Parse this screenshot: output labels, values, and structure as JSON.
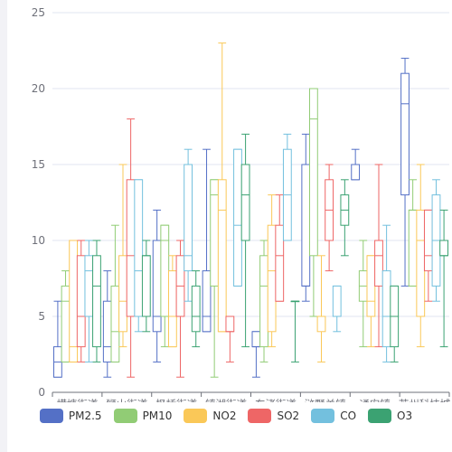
{
  "chart_data": {
    "type": "boxplot",
    "categories": [
      "横塘街道",
      "狮山街道",
      "枫桥街道",
      "镇湖街道",
      "东渚街道",
      "浒墅关镇",
      "通安镇",
      "苏州科技城"
    ],
    "ylim": [
      0,
      25
    ],
    "yticks": [
      0,
      5,
      10,
      15,
      20,
      25
    ],
    "grid": true,
    "legend_position": "bottom",
    "series": [
      {
        "name": "PM2.5",
        "color": "#5470c6",
        "boxes": [
          {
            "min": 1,
            "q1": 1,
            "median": 2,
            "q3": 3,
            "max": 6
          },
          {
            "min": 1,
            "q1": 2,
            "median": 3,
            "q3": 6,
            "max": 8
          },
          {
            "min": 2,
            "q1": 4,
            "median": 5,
            "q3": 10,
            "max": 12
          },
          {
            "min": 4,
            "q1": 4,
            "median": 5,
            "q3": 8,
            "max": 16
          },
          {
            "min": 1,
            "q1": 3,
            "median": 3,
            "q3": 4,
            "max": 4
          },
          {
            "min": 6,
            "q1": 7,
            "median": 7,
            "q3": 15,
            "max": 17
          },
          {
            "min": 14,
            "q1": 14,
            "median": 15,
            "q3": 15,
            "max": 16
          },
          {
            "min": 7,
            "q1": 13,
            "median": 19,
            "q3": 21,
            "max": 22
          }
        ]
      },
      {
        "name": "PM10",
        "color": "#91cc75",
        "boxes": [
          {
            "min": 2,
            "q1": 2,
            "median": 6,
            "q3": 7,
            "max": 8
          },
          {
            "min": 2,
            "q1": 2,
            "median": 4,
            "q3": 7,
            "max": 11
          },
          {
            "min": 3,
            "q1": 5,
            "median": 10,
            "q3": 11,
            "max": 11
          },
          {
            "min": 1,
            "q1": 7,
            "median": 13,
            "q3": 14,
            "max": 14
          },
          {
            "min": 2,
            "q1": 3,
            "median": 7,
            "q3": 9,
            "max": 10
          },
          {
            "min": 5,
            "q1": 9,
            "median": 18,
            "q3": 20,
            "max": 20
          },
          {
            "min": 3,
            "q1": 6,
            "median": 7,
            "q3": 8,
            "max": 10
          },
          {
            "min": 7,
            "q1": 7,
            "median": 12,
            "q3": 12,
            "max": 14
          }
        ]
      },
      {
        "name": "NO2",
        "color": "#fac858",
        "boxes": [
          {
            "min": 2,
            "q1": 2,
            "median": 3,
            "q3": 10,
            "max": 10
          },
          {
            "min": 3,
            "q1": 4,
            "median": 6,
            "q3": 9,
            "max": 15
          },
          {
            "min": 3,
            "q1": 3,
            "median": 5,
            "q3": 8,
            "max": 9
          },
          {
            "min": 4,
            "q1": 4,
            "median": 12,
            "q3": 14,
            "max": 23
          },
          {
            "min": 3,
            "q1": 4,
            "median": 8,
            "q3": 11,
            "max": 13
          },
          {
            "min": 2,
            "q1": 4,
            "median": 5,
            "q3": 5,
            "max": 9
          },
          {
            "min": 3,
            "q1": 5,
            "median": 6,
            "q3": 9,
            "max": 9
          },
          {
            "min": 3,
            "q1": 5,
            "median": 10,
            "q3": 12,
            "max": 15
          }
        ]
      },
      {
        "name": "SO2",
        "color": "#ee6666",
        "boxes": [
          {
            "min": 2,
            "q1": 3,
            "median": 5,
            "q3": 9,
            "max": 10
          },
          {
            "min": 1,
            "q1": 5,
            "median": 9,
            "q3": 14,
            "max": 18
          },
          {
            "min": 1,
            "q1": 5,
            "median": 7,
            "q3": 9,
            "max": 10
          },
          {
            "min": 2,
            "q1": 4,
            "median": 4,
            "q3": 5,
            "max": 5
          },
          {
            "min": 6,
            "q1": 6,
            "median": 9,
            "q3": 11,
            "max": 13
          },
          {
            "min": 8,
            "q1": 10,
            "median": 12,
            "q3": 14,
            "max": 15
          },
          {
            "min": 3,
            "q1": 7,
            "median": 9,
            "q3": 10,
            "max": 15
          },
          {
            "min": 6,
            "q1": 8,
            "median": 9,
            "q3": 12,
            "max": 12
          }
        ]
      },
      {
        "name": "CO",
        "color": "#73c0de",
        "boxes": [
          {
            "min": 2,
            "q1": 5,
            "median": 8,
            "q3": 9,
            "max": 10
          },
          {
            "min": 4,
            "q1": 5,
            "median": 8,
            "q3": 14,
            "max": 14
          },
          {
            "min": 6,
            "q1": 8,
            "median": 9,
            "q3": 15,
            "max": 16
          },
          {
            "min": 7,
            "q1": 7,
            "median": 11,
            "q3": 16,
            "max": 16
          },
          {
            "min": 10,
            "q1": 10,
            "median": 13,
            "q3": 16,
            "max": 17
          },
          {
            "min": 4,
            "q1": 5,
            "median": 5,
            "q3": 7,
            "max": 7
          },
          {
            "min": 2,
            "q1": 3,
            "median": 5,
            "q3": 8,
            "max": 11
          },
          {
            "min": 6,
            "q1": 7,
            "median": 10,
            "q3": 13,
            "max": 14
          }
        ]
      },
      {
        "name": "O3",
        "color": "#3ba272",
        "boxes": [
          {
            "min": 2,
            "q1": 3,
            "median": 7,
            "q3": 9,
            "max": 10
          },
          {
            "min": 4,
            "q1": 5,
            "median": 9,
            "q3": 9,
            "max": 10
          },
          {
            "min": 3,
            "q1": 4,
            "median": 5,
            "q3": 7,
            "max": 8
          },
          {
            "min": 3,
            "q1": 10,
            "median": 13,
            "q3": 15,
            "max": 17
          },
          {
            "min": 2,
            "q1": 6,
            "median": 6,
            "q3": 6,
            "max": 6
          },
          {
            "min": 9,
            "q1": 11,
            "median": 12,
            "q3": 13,
            "max": 14
          },
          {
            "min": 2,
            "q1": 3,
            "median": 5,
            "q3": 7,
            "max": 7
          },
          {
            "min": 3,
            "q1": 9,
            "median": 9,
            "q3": 10,
            "max": 12
          }
        ]
      }
    ]
  }
}
